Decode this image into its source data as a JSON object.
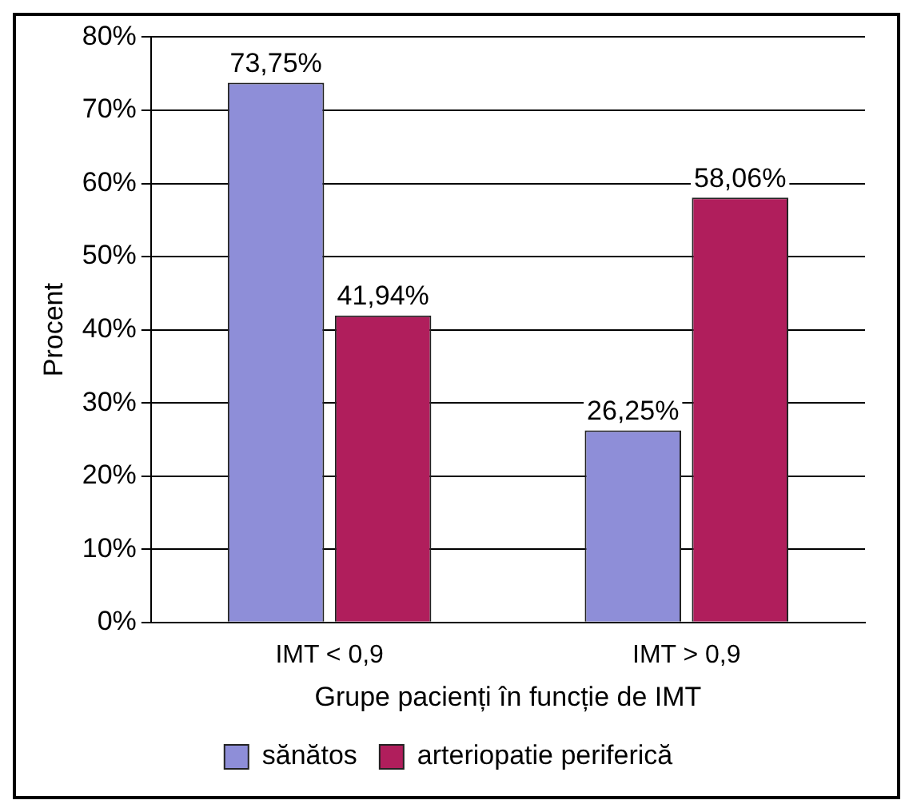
{
  "chart_data": {
    "type": "bar",
    "xlabel": "Grupe pacienți în funcție de IMT",
    "ylabel": "Procent",
    "categories": [
      "IMT < 0,9",
      "IMT > 0,9"
    ],
    "series": [
      {
        "name": "sănătos",
        "color": "#8e8ed8",
        "values": [
          73.75,
          26.25
        ],
        "value_labels": [
          "73,75%",
          "26,25%"
        ]
      },
      {
        "name": "arteriopatie periferică",
        "color": "#b01e5c",
        "values": [
          41.94,
          58.06
        ],
        "value_labels": [
          "41,94%",
          "58,06%"
        ]
      }
    ],
    "ylim": [
      0,
      80
    ],
    "yticks": [
      {
        "value": 0,
        "label": "0%"
      },
      {
        "value": 10,
        "label": "10%"
      },
      {
        "value": 20,
        "label": "20%"
      },
      {
        "value": 30,
        "label": "30%"
      },
      {
        "value": 40,
        "label": "40%"
      },
      {
        "value": 50,
        "label": "50%"
      },
      {
        "value": 60,
        "label": "60%"
      },
      {
        "value": 70,
        "label": "70%"
      },
      {
        "value": 80,
        "label": "80%"
      }
    ],
    "grid": "y",
    "legend": "bottom"
  }
}
